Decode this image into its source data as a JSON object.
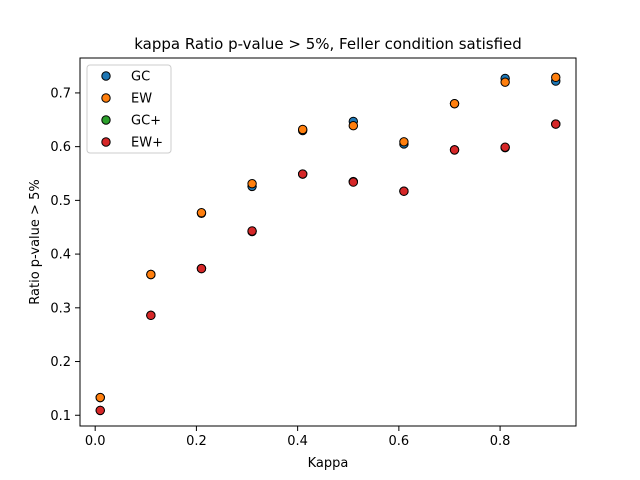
{
  "chart_data": {
    "type": "scatter",
    "title": "kappa Ratio p-value > 5%, Feller condition satisfied",
    "xlabel": "Kappa",
    "ylabel": "Ratio p-value > 5%",
    "xlim": [
      -0.03,
      0.95
    ],
    "ylim": [
      0.08,
      0.765
    ],
    "xticks": [
      0.0,
      0.2,
      0.4,
      0.6,
      0.8
    ],
    "xtick_labels": [
      "0.0",
      "0.2",
      "0.4",
      "0.6",
      "0.8"
    ],
    "yticks": [
      0.1,
      0.2,
      0.3,
      0.4,
      0.5,
      0.6,
      0.7
    ],
    "ytick_labels": [
      "0.1",
      "0.2",
      "0.3",
      "0.4",
      "0.5",
      "0.6",
      "0.7"
    ],
    "grid": false,
    "legend_position": "upper-left",
    "x": [
      0.01,
      0.11,
      0.21,
      0.31,
      0.41,
      0.51,
      0.61,
      0.71,
      0.81,
      0.91
    ],
    "series": [
      {
        "name": "GC",
        "color": "#1f77b4",
        "values": [
          0.133,
          0.362,
          0.476,
          0.526,
          0.63,
          0.647,
          0.605,
          0.68,
          0.727,
          0.722
        ]
      },
      {
        "name": "EW",
        "color": "#ff7f0e",
        "values": [
          0.133,
          0.362,
          0.477,
          0.531,
          0.632,
          0.639,
          0.609,
          0.68,
          0.72,
          0.729
        ]
      },
      {
        "name": "GC+",
        "color": "#2ca02c",
        "values": [
          0.109,
          0.286,
          0.373,
          0.442,
          0.549,
          0.535,
          0.517,
          0.594,
          0.598,
          0.642
        ]
      },
      {
        "name": "EW+",
        "color": "#d62728",
        "values": [
          0.109,
          0.286,
          0.373,
          0.443,
          0.549,
          0.534,
          0.517,
          0.594,
          0.599,
          0.642
        ]
      }
    ]
  }
}
